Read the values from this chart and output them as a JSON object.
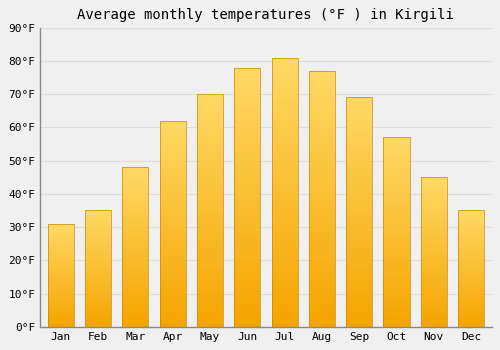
{
  "title": "Average monthly temperatures (°F ) in Kirgili",
  "months": [
    "Jan",
    "Feb",
    "Mar",
    "Apr",
    "May",
    "Jun",
    "Jul",
    "Aug",
    "Sep",
    "Oct",
    "Nov",
    "Dec"
  ],
  "values": [
    31,
    35,
    48,
    62,
    70,
    78,
    81,
    77,
    69,
    57,
    45,
    35
  ],
  "bar_color_main": "#FFA500",
  "bar_color_light": "#FFD060",
  "bar_edge_color": "#CC8800",
  "background_color": "#F0F0F0",
  "grid_color": "#DDDDDD",
  "ylim": [
    0,
    90
  ],
  "yticks": [
    0,
    10,
    20,
    30,
    40,
    50,
    60,
    70,
    80,
    90
  ],
  "title_fontsize": 10,
  "tick_fontsize": 8,
  "font_family": "monospace"
}
